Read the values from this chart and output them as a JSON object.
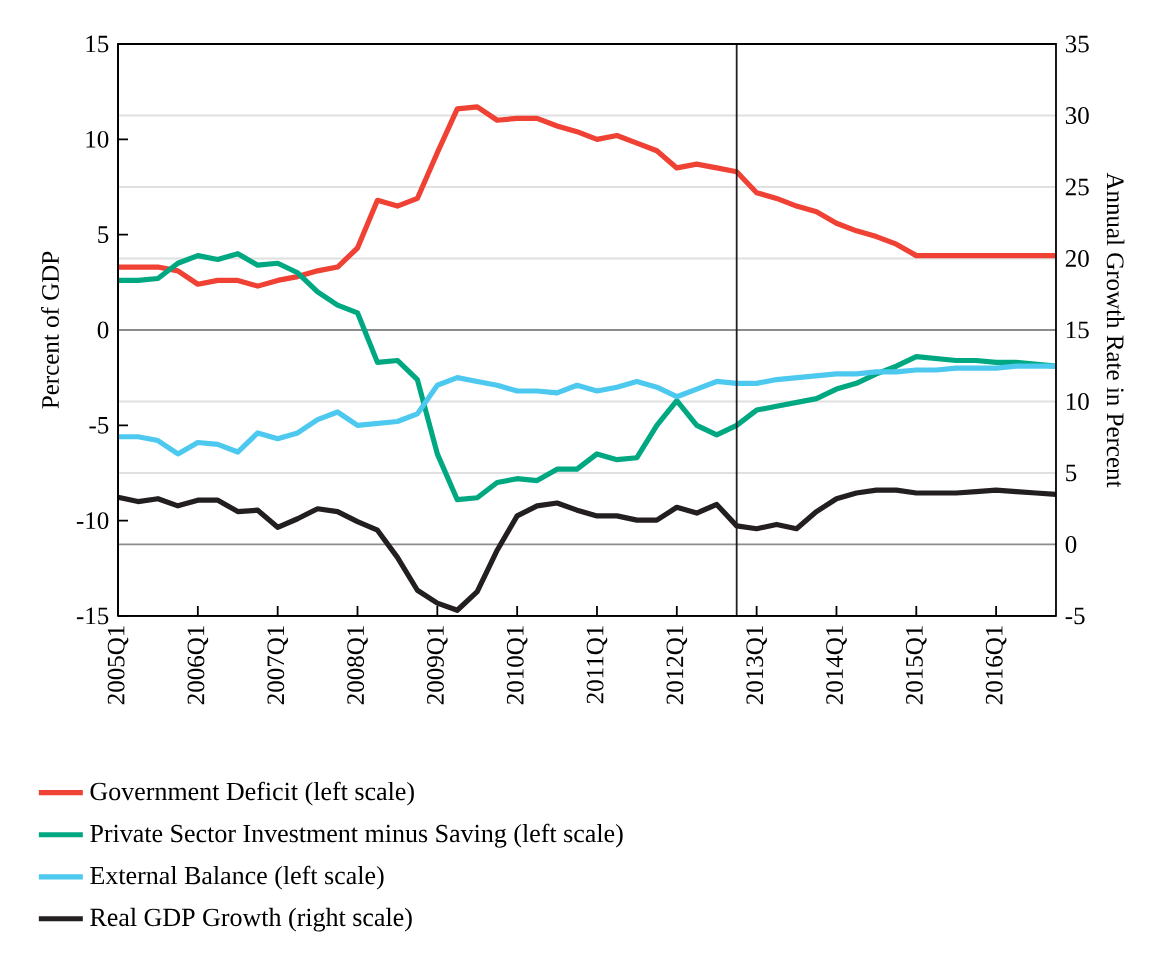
{
  "chart_data": {
    "type": "line",
    "ylabel": "Percent of GDP",
    "y2label": "Annual Growth Rate in Percent",
    "categories": [
      "2005Q1",
      null,
      null,
      null,
      "2006Q1",
      null,
      null,
      null,
      "2007Q1",
      null,
      null,
      null,
      "2008Q1",
      null,
      null,
      null,
      "2009Q1",
      null,
      null,
      null,
      "2010Q1",
      null,
      null,
      null,
      "2011Q1",
      null,
      null,
      null,
      "2012Q1",
      null,
      null,
      null,
      "2013Q1",
      null,
      null,
      null,
      "2014Q1",
      null,
      null,
      null,
      "2015Q1",
      null,
      null,
      null,
      "2016Q1",
      null,
      null,
      null
    ],
    "series": [
      {
        "name": "Government Deficit (left scale)",
        "color": "#ef4134",
        "values": [
          3.3,
          3.3,
          3.3,
          3.1,
          2.4,
          2.6,
          2.6,
          2.3,
          2.6,
          2.8,
          3.1,
          3.3,
          4.3,
          6.8,
          6.5,
          6.9,
          9.3,
          11.6,
          11.7,
          11.0,
          11.1,
          11.1,
          10.7,
          10.4,
          10.0,
          10.2,
          9.8,
          9.4,
          8.5,
          8.7,
          8.5,
          8.3,
          7.2,
          6.9,
          6.5,
          6.2,
          5.6,
          5.2,
          4.9,
          4.5,
          3.9,
          3.9,
          3.9,
          3.9,
          3.9,
          3.9,
          3.9,
          3.9
        ]
      },
      {
        "name": "Private Sector Investment minus Saving (left scale)",
        "color": "#00a882",
        "values": [
          2.6,
          2.6,
          2.7,
          3.5,
          3.9,
          3.7,
          4.0,
          3.4,
          3.5,
          3.0,
          2.0,
          1.3,
          0.9,
          -1.7,
          -1.6,
          -2.6,
          -6.5,
          -8.9,
          -8.8,
          -8.0,
          -7.8,
          -7.9,
          -7.3,
          -7.3,
          -6.5,
          -6.8,
          -6.7,
          -5.0,
          -3.7,
          -5.0,
          -5.5,
          -5.0,
          -4.2,
          -4.0,
          -3.8,
          -3.6,
          -3.1,
          -2.8,
          -2.3,
          -1.9,
          -1.4,
          -1.5,
          -1.6,
          -1.6,
          -1.7,
          -1.7,
          -1.8,
          -1.9
        ]
      },
      {
        "name": "External Balance (left scale)",
        "color": "#4dc9f0",
        "values": [
          -5.6,
          -5.6,
          -5.8,
          -6.5,
          -5.9,
          -6.0,
          -6.4,
          -5.4,
          -5.7,
          -5.4,
          -4.7,
          -4.3,
          -5.0,
          -4.9,
          -4.8,
          -4.4,
          -2.9,
          -2.5,
          -2.7,
          -2.9,
          -3.2,
          -3.2,
          -3.3,
          -2.9,
          -3.2,
          -3.0,
          -2.7,
          -3.0,
          -3.5,
          -3.1,
          -2.7,
          -2.8,
          -2.8,
          -2.6,
          -2.5,
          -2.4,
          -2.3,
          -2.3,
          -2.2,
          -2.2,
          -2.1,
          -2.1,
          -2.0,
          -2.0,
          -2.0,
          -1.9,
          -1.9,
          -1.9
        ]
      },
      {
        "name": "Real GDP Growth (right scale)",
        "color": "#231f20",
        "axis": "y2",
        "values": [
          3.3,
          3.0,
          3.2,
          2.7,
          3.1,
          3.1,
          2.3,
          2.4,
          1.2,
          1.8,
          2.5,
          2.3,
          1.6,
          1.0,
          -0.9,
          -3.2,
          -4.1,
          -4.6,
          -3.3,
          -0.4,
          2.0,
          2.7,
          2.9,
          2.4,
          2.0,
          2.0,
          1.7,
          1.7,
          2.6,
          2.2,
          2.8,
          1.3,
          1.1,
          1.4,
          1.1,
          2.3,
          3.2,
          3.6,
          3.8,
          3.8,
          3.6,
          3.6,
          3.6,
          3.7,
          3.8,
          3.7,
          3.6,
          3.5
        ]
      }
    ],
    "ylim": [
      -15,
      15
    ],
    "yticks": [
      -15,
      -10,
      -5,
      0,
      5,
      10,
      15
    ],
    "y2lim": [
      -5,
      35
    ],
    "y2ticks": [
      -5,
      0,
      5,
      10,
      15,
      20,
      25,
      30,
      35
    ],
    "grid": true,
    "legend": "bottom",
    "marker": "none",
    "line_style": "solid"
  }
}
